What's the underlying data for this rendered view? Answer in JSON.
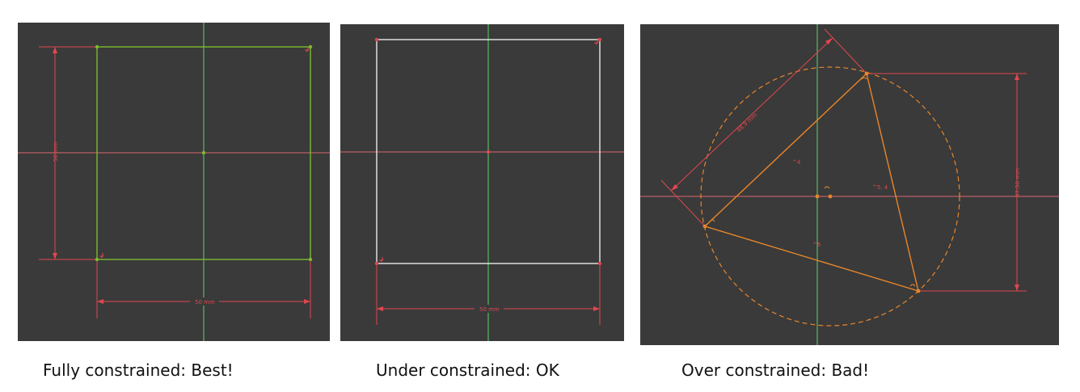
{
  "colors": {
    "background": "#3a3a3a",
    "axis_x": "#d9666f",
    "axis_y": "#5ed36a",
    "dimension": "#e0474f",
    "fully_constrained": "#7dbb2e",
    "under_constrained": "#e8e8e8",
    "over_constrained": "#e8862a"
  },
  "panels": [
    {
      "name": "fully-constrained",
      "caption": "Fully constrained: Best!",
      "dimensions": {
        "horizontal": "50 mm",
        "vertical": "50 mm"
      }
    },
    {
      "name": "under-constrained",
      "caption": "Under constrained: OK",
      "dimensions": {
        "horizontal": "50 mm"
      }
    },
    {
      "name": "over-constrained",
      "caption": "Over constrained: Bad!",
      "dimensions": {
        "diagonal": "48.9 mm",
        "vertical": "47.56 mm"
      },
      "angle_labels": [
        "^4",
        "^5, 4",
        "^5"
      ]
    }
  ]
}
